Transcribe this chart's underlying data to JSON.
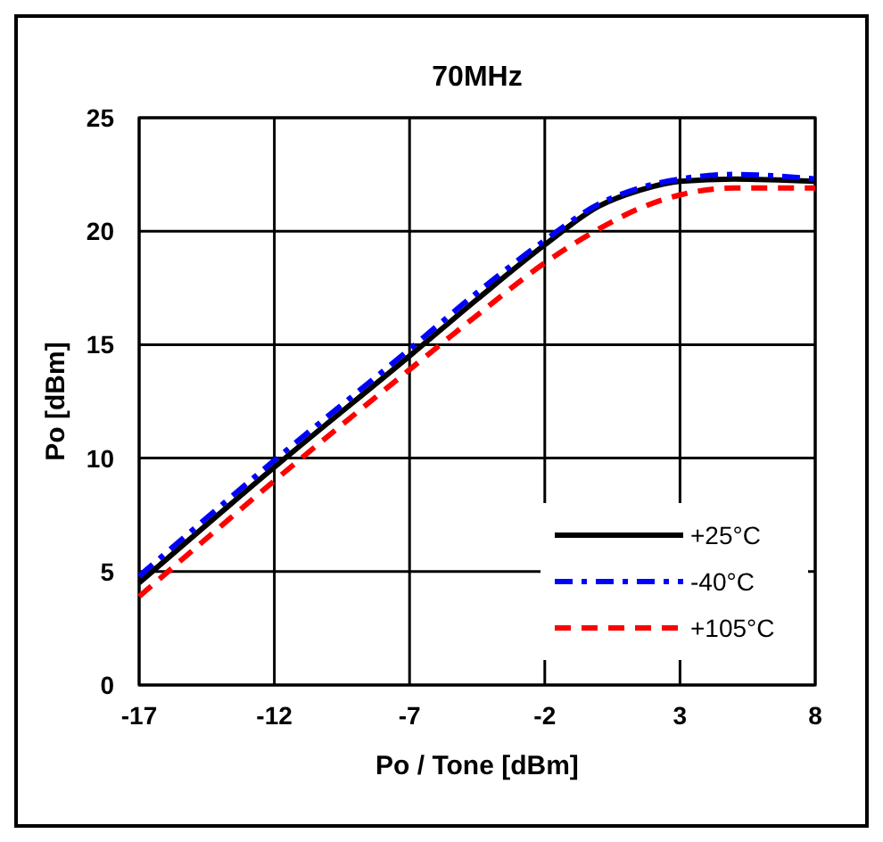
{
  "chart_data": {
    "type": "line",
    "title": "70MHz",
    "xlabel": "Po / Tone [dBm]",
    "ylabel": "Po [dBm]",
    "xlim": [
      -17,
      8
    ],
    "xticks": [
      -17,
      -12,
      -7,
      -2,
      3,
      8
    ],
    "ylim": [
      0,
      25
    ],
    "yticks": [
      0,
      5,
      10,
      15,
      20,
      25
    ],
    "grid": true,
    "legend": "bottom right",
    "x": [
      -17,
      -12,
      -7,
      -4.5,
      -2,
      0,
      1.5,
      3,
      5,
      8
    ],
    "series": [
      {
        "name": "+25°C",
        "color": "#000000",
        "line_style": "solid",
        "values": [
          4.5,
          9.6,
          14.5,
          17.0,
          19.4,
          21.1,
          21.8,
          22.2,
          22.3,
          22.2
        ]
      },
      {
        "name": "-40°C",
        "color": "#0000ff",
        "line_style": "dashdot",
        "values": [
          4.8,
          9.9,
          14.8,
          17.3,
          19.6,
          21.2,
          21.9,
          22.3,
          22.5,
          22.3
        ]
      },
      {
        "name": "+105°C",
        "color": "#ff0000",
        "line_style": "dashed",
        "values": [
          3.9,
          9.0,
          13.9,
          16.3,
          18.6,
          20.1,
          21.0,
          21.6,
          21.9,
          21.9
        ]
      }
    ]
  }
}
